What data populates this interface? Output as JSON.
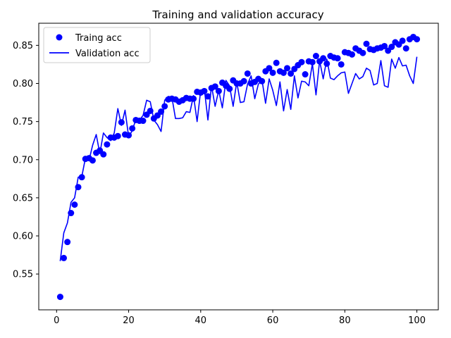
{
  "chart_data": {
    "type": "line",
    "title": "Training and validation accuracy",
    "xlabel": "",
    "ylabel": "",
    "xlim": [
      -4.95,
      105.95
    ],
    "ylim": [
      0.503,
      0.879
    ],
    "xticks": [
      0,
      20,
      40,
      60,
      80,
      100
    ],
    "xtick_labels": [
      "0",
      "20",
      "40",
      "60",
      "80",
      "100"
    ],
    "yticks": [
      0.55,
      0.6,
      0.65,
      0.7,
      0.75,
      0.8,
      0.85
    ],
    "ytick_labels": [
      "0.55",
      "0.60",
      "0.65",
      "0.70",
      "0.75",
      "0.80",
      "0.85"
    ],
    "grid": false,
    "legend_position": "upper-left",
    "x": [
      1,
      2,
      3,
      4,
      5,
      6,
      7,
      8,
      9,
      10,
      11,
      12,
      13,
      14,
      15,
      16,
      17,
      18,
      19,
      20,
      21,
      22,
      23,
      24,
      25,
      26,
      27,
      28,
      29,
      30,
      31,
      32,
      33,
      34,
      35,
      36,
      37,
      38,
      39,
      40,
      41,
      42,
      43,
      44,
      45,
      46,
      47,
      48,
      49,
      50,
      51,
      52,
      53,
      54,
      55,
      56,
      57,
      58,
      59,
      60,
      61,
      62,
      63,
      64,
      65,
      66,
      67,
      68,
      69,
      70,
      71,
      72,
      73,
      74,
      75,
      76,
      77,
      78,
      79,
      80,
      81,
      82,
      83,
      84,
      85,
      86,
      87,
      88,
      89,
      90,
      91,
      92,
      93,
      94,
      95,
      96,
      97,
      98,
      99,
      100
    ],
    "series": [
      {
        "name": "Traing acc",
        "style": "points",
        "color": "#0000ff",
        "values": [
          0.52,
          0.571,
          0.592,
          0.63,
          0.641,
          0.664,
          0.677,
          0.701,
          0.702,
          0.699,
          0.709,
          0.712,
          0.707,
          0.72,
          0.729,
          0.729,
          0.731,
          0.749,
          0.733,
          0.732,
          0.741,
          0.752,
          0.751,
          0.751,
          0.759,
          0.764,
          0.754,
          0.758,
          0.763,
          0.77,
          0.779,
          0.78,
          0.779,
          0.776,
          0.778,
          0.781,
          0.78,
          0.78,
          0.789,
          0.788,
          0.79,
          0.783,
          0.794,
          0.796,
          0.79,
          0.801,
          0.797,
          0.793,
          0.804,
          0.8,
          0.8,
          0.803,
          0.813,
          0.8,
          0.802,
          0.806,
          0.803,
          0.816,
          0.82,
          0.814,
          0.827,
          0.816,
          0.814,
          0.82,
          0.813,
          0.819,
          0.824,
          0.828,
          0.812,
          0.829,
          0.828,
          0.836,
          0.829,
          0.833,
          0.826,
          0.836,
          0.834,
          0.833,
          0.825,
          0.841,
          0.84,
          0.838,
          0.846,
          0.843,
          0.84,
          0.852,
          0.845,
          0.844,
          0.846,
          0.847,
          0.849,
          0.843,
          0.848,
          0.854,
          0.851,
          0.856,
          0.846,
          0.858,
          0.861,
          0.858
        ]
      },
      {
        "name": "Validation acc",
        "style": "line",
        "color": "#0000ff",
        "values": [
          0.567,
          0.604,
          0.617,
          0.644,
          0.65,
          0.677,
          0.678,
          0.702,
          0.699,
          0.719,
          0.733,
          0.708,
          0.735,
          0.729,
          0.725,
          0.735,
          0.767,
          0.745,
          0.765,
          0.73,
          0.738,
          0.753,
          0.752,
          0.758,
          0.778,
          0.776,
          0.752,
          0.746,
          0.737,
          0.778,
          0.783,
          0.782,
          0.754,
          0.754,
          0.755,
          0.763,
          0.762,
          0.784,
          0.75,
          0.791,
          0.793,
          0.752,
          0.797,
          0.77,
          0.791,
          0.768,
          0.804,
          0.797,
          0.77,
          0.802,
          0.775,
          0.776,
          0.799,
          0.81,
          0.78,
          0.799,
          0.805,
          0.774,
          0.806,
          0.791,
          0.771,
          0.802,
          0.764,
          0.792,
          0.766,
          0.81,
          0.781,
          0.803,
          0.802,
          0.797,
          0.826,
          0.785,
          0.83,
          0.806,
          0.832,
          0.807,
          0.805,
          0.81,
          0.814,
          0.815,
          0.787,
          0.8,
          0.813,
          0.806,
          0.809,
          0.82,
          0.817,
          0.798,
          0.8,
          0.83,
          0.797,
          0.795,
          0.832,
          0.82,
          0.834,
          0.823,
          0.824,
          0.81,
          0.8,
          0.835
        ]
      }
    ]
  }
}
